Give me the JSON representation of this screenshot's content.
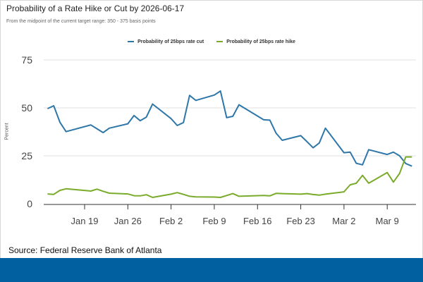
{
  "header": {
    "title": "Probability of a Rate Hike or Cut by 2026-06-17",
    "subtitle": "From the midpoint of the current target range: 350 - 375 basis points"
  },
  "footer": {
    "source": "Source: Federal Reserve Bank of Atlanta",
    "band_color": "#0060a0"
  },
  "chart_data": {
    "type": "line",
    "title": "Probability of a Rate Hike or Cut by 2026-06-17",
    "subtitle": "From the midpoint of the current target range: 350 - 375 basis points",
    "xlabel": "",
    "ylabel": "Percent",
    "ylim": [
      0,
      75
    ],
    "yticks": [
      "0",
      "25",
      "50",
      "75"
    ],
    "xticks": [
      {
        "date": "2026-01-19",
        "label": "Jan 19"
      },
      {
        "date": "2026-01-26",
        "label": "Jan 26"
      },
      {
        "date": "2026-02-02",
        "label": "Feb 2"
      },
      {
        "date": "2026-02-09",
        "label": "Feb 9"
      },
      {
        "date": "2026-02-16",
        "label": "Feb 16"
      },
      {
        "date": "2026-02-23",
        "label": "Feb 23"
      },
      {
        "date": "2026-03-02",
        "label": "Mar 2"
      },
      {
        "date": "2026-03-09",
        "label": "Mar 9"
      }
    ],
    "grid": true,
    "legend_position": "top-center",
    "x": [
      "2026-01-13",
      "2026-01-14",
      "2026-01-15",
      "2026-01-16",
      "2026-01-20",
      "2026-01-21",
      "2026-01-22",
      "2026-01-23",
      "2026-01-26",
      "2026-01-27",
      "2026-01-28",
      "2026-01-29",
      "2026-01-30",
      "2026-02-02",
      "2026-02-03",
      "2026-02-04",
      "2026-02-05",
      "2026-02-06",
      "2026-02-09",
      "2026-02-10",
      "2026-02-11",
      "2026-02-12",
      "2026-02-13",
      "2026-02-17",
      "2026-02-18",
      "2026-02-19",
      "2026-02-20",
      "2026-02-23",
      "2026-02-24",
      "2026-02-25",
      "2026-02-26",
      "2026-02-27",
      "2026-03-02",
      "2026-03-03",
      "2026-03-04",
      "2026-03-05",
      "2026-03-06",
      "2026-03-09",
      "2026-03-10",
      "2026-03-11",
      "2026-03-12",
      "2026-03-13"
    ],
    "series": [
      {
        "name": "Probability of 25bps rate cut",
        "color": "#2f77a8",
        "values": [
          49.6,
          51.1,
          42.5,
          37.6,
          41.1,
          39.1,
          37.1,
          39.4,
          41.7,
          46.0,
          43.3,
          45.2,
          52.0,
          44.4,
          40.8,
          42.3,
          56.5,
          53.9,
          56.7,
          58.8,
          44.9,
          45.6,
          51.6,
          43.8,
          43.6,
          36.8,
          33.1,
          35.5,
          32.4,
          29.2,
          31.7,
          39.4,
          26.6,
          26.9,
          21.1,
          20.3,
          28.2,
          25.7,
          26.9,
          25.0,
          21.0,
          19.6
        ]
      },
      {
        "name": "Probability of 25bps rate hike",
        "color": "#7aab2a",
        "values": [
          5.1,
          4.9,
          7.0,
          7.8,
          6.6,
          7.6,
          6.5,
          5.5,
          5.1,
          4.2,
          4.1,
          4.7,
          3.3,
          5.0,
          5.8,
          4.9,
          3.9,
          3.6,
          3.5,
          3.3,
          4.3,
          5.3,
          3.9,
          4.3,
          4.1,
          5.4,
          5.3,
          5.0,
          5.3,
          4.8,
          4.5,
          5.0,
          6.2,
          9.9,
          10.7,
          14.8,
          10.7,
          16.3,
          11.3,
          15.8,
          24.4,
          24.4
        ]
      }
    ]
  }
}
